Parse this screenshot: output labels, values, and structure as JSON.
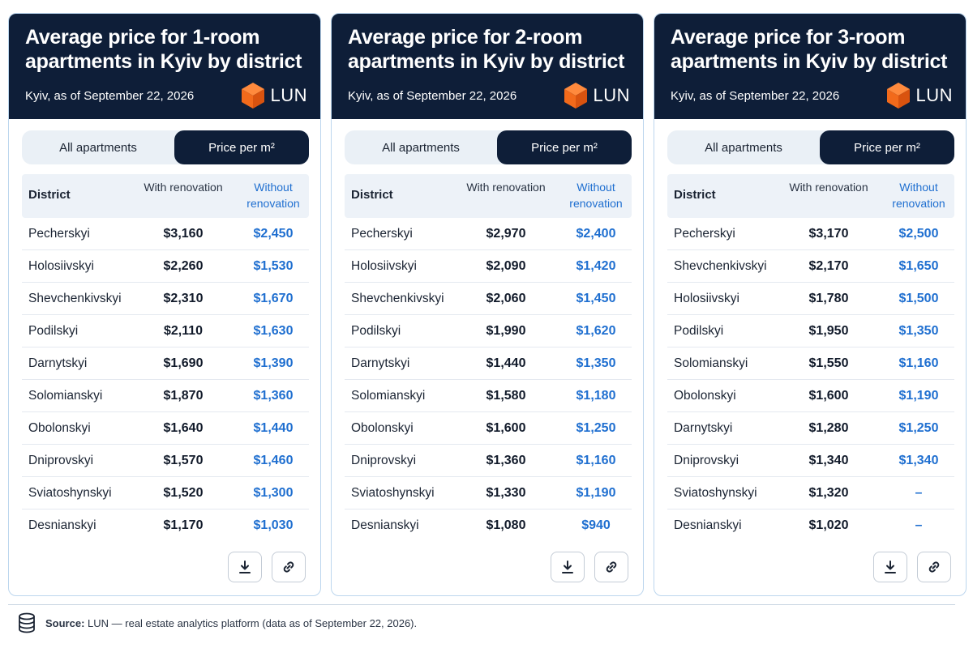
{
  "ui": {
    "toggle_all": "All apartments",
    "toggle_price": "Price per m²",
    "col_district": "District",
    "col_with": "With renovation",
    "col_without": "Without renovation",
    "brand": "LUN",
    "meta": "Kyiv, as of September 22, 2026"
  },
  "panels": [
    {
      "title": "Average price for 1-room apartments in Kyiv by district",
      "rows": [
        {
          "district": "Pecherskyi",
          "with": "$3,160",
          "without": "$2,450"
        },
        {
          "district": "Holosiivskyi",
          "with": "$2,260",
          "without": "$1,530"
        },
        {
          "district": "Shevchenkivskyi",
          "with": "$2,310",
          "without": "$1,670"
        },
        {
          "district": "Podilskyi",
          "with": "$2,110",
          "without": "$1,630"
        },
        {
          "district": "Darnytskyi",
          "with": "$1,690",
          "without": "$1,390"
        },
        {
          "district": "Solomianskyi",
          "with": "$1,870",
          "without": "$1,360"
        },
        {
          "district": "Obolonskyi",
          "with": "$1,640",
          "without": "$1,440"
        },
        {
          "district": "Dniprovskyi",
          "with": "$1,570",
          "without": "$1,460"
        },
        {
          "district": "Sviatoshynskyi",
          "with": "$1,520",
          "without": "$1,300"
        },
        {
          "district": "Desnianskyi",
          "with": "$1,170",
          "without": "$1,030"
        }
      ]
    },
    {
      "title": "Average price for 2-room apartments in Kyiv by district",
      "rows": [
        {
          "district": "Pecherskyi",
          "with": "$2,970",
          "without": "$2,400"
        },
        {
          "district": "Holosiivskyi",
          "with": "$2,090",
          "without": "$1,420"
        },
        {
          "district": "Shevchenkivskyi",
          "with": "$2,060",
          "without": "$1,450"
        },
        {
          "district": "Podilskyi",
          "with": "$1,990",
          "without": "$1,620"
        },
        {
          "district": "Darnytskyi",
          "with": "$1,440",
          "without": "$1,350"
        },
        {
          "district": "Solomianskyi",
          "with": "$1,580",
          "without": "$1,180"
        },
        {
          "district": "Obolonskyi",
          "with": "$1,600",
          "without": "$1,250"
        },
        {
          "district": "Dniprovskyi",
          "with": "$1,360",
          "without": "$1,160"
        },
        {
          "district": "Sviatoshynskyi",
          "with": "$1,330",
          "without": "$1,190"
        },
        {
          "district": "Desnianskyi",
          "with": "$1,080",
          "without": "$940"
        }
      ]
    },
    {
      "title": "Average price for 3-room apartments in Kyiv by district",
      "rows": [
        {
          "district": "Pecherskyi",
          "with": "$3,170",
          "without": "$2,500"
        },
        {
          "district": "Shevchenkivskyi",
          "with": "$2,170",
          "without": "$1,650"
        },
        {
          "district": "Holosiivskyi",
          "with": "$1,780",
          "without": "$1,500"
        },
        {
          "district": "Podilskyi",
          "with": "$1,950",
          "without": "$1,350"
        },
        {
          "district": "Solomianskyi",
          "with": "$1,550",
          "without": "$1,160"
        },
        {
          "district": "Obolonskyi",
          "with": "$1,600",
          "without": "$1,190"
        },
        {
          "district": "Darnytskyi",
          "with": "$1,280",
          "without": "$1,250"
        },
        {
          "district": "Dniprovskyi",
          "with": "$1,340",
          "without": "$1,340"
        },
        {
          "district": "Sviatoshynskyi",
          "with": "$1,320",
          "without": "–"
        },
        {
          "district": "Desnianskyi",
          "with": "$1,020",
          "without": "–"
        }
      ]
    }
  ],
  "footer": {
    "label": "Source:",
    "text": "LUN — real estate analytics platform (data as of September 22, 2026)."
  },
  "colors": {
    "header_bg": "#0e1e38",
    "accent_blue": "#1f6fd0",
    "brand_orange": "#f26a1b"
  },
  "icons": [
    "cube-logo-icon",
    "download-icon",
    "link-icon",
    "database-icon"
  ]
}
